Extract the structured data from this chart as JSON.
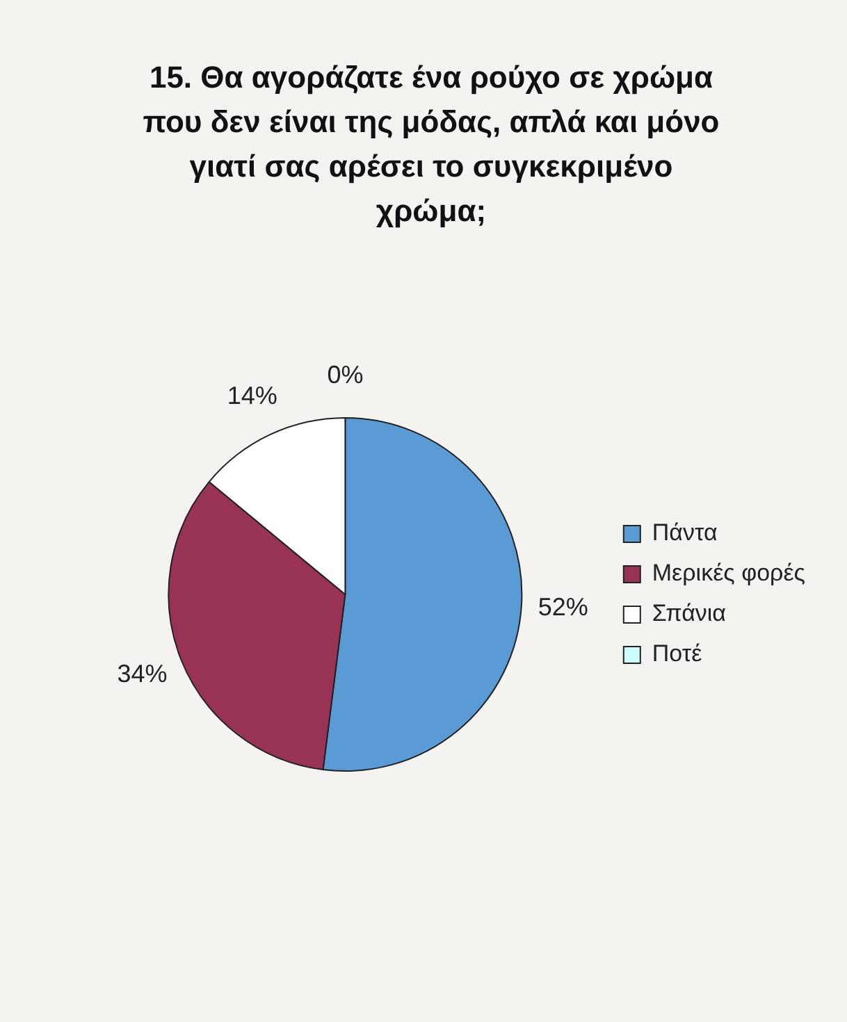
{
  "chart_data": {
    "type": "pie",
    "title": "15. Θα αγοράζατε ένα ρούχο σε χρώμα που δεν είναι της μόδας, απλά και μόνο γιατί σας αρέσει το συγκεκριμένο χρώμα;",
    "categories": [
      "Πάντα",
      "Μερικές φορές",
      "Σπάνια",
      "Ποτέ"
    ],
    "values": [
      52,
      34,
      14,
      0
    ],
    "value_labels": [
      "52%",
      "34%",
      "14%",
      "0%"
    ],
    "colors": [
      "#5b9bd5",
      "#993355",
      "#ffffff",
      "#ccffff"
    ],
    "legend": "right"
  }
}
